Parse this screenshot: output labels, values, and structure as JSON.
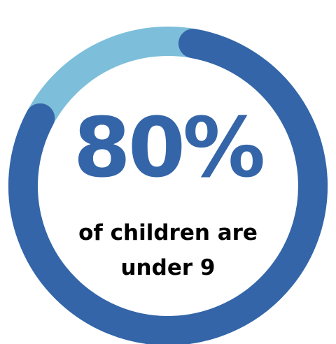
{
  "chart_data": {
    "type": "pie",
    "variant": "donut",
    "value_label": "80%",
    "caption_lines": [
      "of children are",
      "under 9"
    ],
    "slices": [
      {
        "value": 80,
        "color": "#3465a8"
      },
      {
        "value": 20,
        "color": "#7dbfda"
      }
    ]
  },
  "colors": {
    "primary": "#3465a8",
    "secondary": "#7dbfda"
  }
}
